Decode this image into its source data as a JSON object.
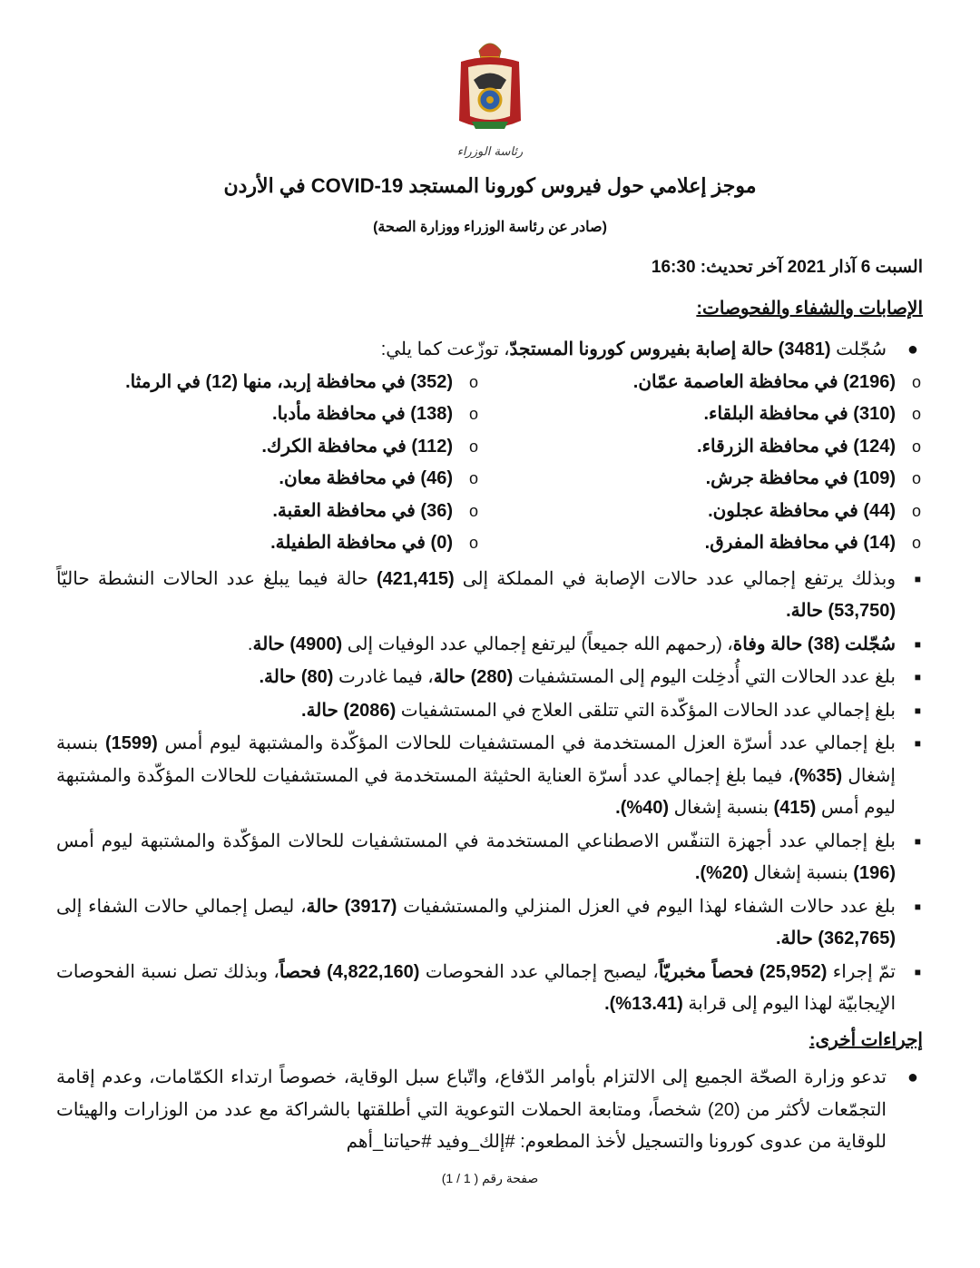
{
  "emblem_text": "رئاسة الوزراء",
  "title": "موجز إعلامي حول فيروس كورونا المستجد COVID-19 في الأردن",
  "subtitle": "(صادر عن رئاسة الوزراء ووزارة الصحة)",
  "date_line": "السبت 6 آذار 2021 آخر تحديث: 16:30",
  "section1_heading": "الإصابات والشفاء والفحوصات:",
  "intro": [
    {
      "t": "سُجّلت "
    },
    {
      "t": "(3481) حالة إصابة بفيروس كورونا المستجدّ",
      "b": true
    },
    {
      "t": "، توزّعت كما يلي:"
    }
  ],
  "provinces": [
    "(2196) في محافظة العاصمة عمّان.",
    "(352) في محافظة إربد، منها (12) في الرمثا.",
    "(310) في محافظة البلقاء.",
    "(138) في محافظة مأدبا.",
    "(124) في محافظة الزرقاء.",
    "(112) في محافظة الكرك.",
    "(109) في محافظة جرش.",
    "(46) في محافظة معان.",
    "(44) في محافظة عجلون.",
    "(36) في محافظة العقبة.",
    "(14) في محافظة المفرق.",
    "(0) في محافظة الطفيلة."
  ],
  "items": [
    [
      {
        "t": "وبذلك يرتفع إجمالي عدد حالات الإصابة في المملكة إلى "
      },
      {
        "t": "(421,415)",
        "b": true
      },
      {
        "t": " حالة فيما يبلغ عدد الحالات النشطة حاليّاً "
      },
      {
        "t": "(53,750) حالة.",
        "b": true
      }
    ],
    [
      {
        "t": "سُجّلت (38) حالة وفاة",
        "b": true
      },
      {
        "t": "، (رحمهم الله جميعاً) ليرتفع إجمالي عدد الوفيات إلى "
      },
      {
        "t": "(4900) حالة",
        "b": true
      },
      {
        "t": "."
      }
    ],
    [
      {
        "t": "بلغ عدد الحالات التي أُدخِلت اليوم إلى المستشفيات "
      },
      {
        "t": "(280) حالة",
        "b": true
      },
      {
        "t": "، فيما غادرت "
      },
      {
        "t": "(80) حالة.",
        "b": true
      }
    ],
    [
      {
        "t": "بلغ إجمالي عدد الحالات المؤكّدة التي تتلقى العلاج في المستشفيات "
      },
      {
        "t": "(2086) حالة.",
        "b": true
      }
    ],
    [
      {
        "t": "بلغ إجمالي عدد أسرّة العزل المستخدمة في المستشفيات للحالات المؤكّدة والمشتبهة ليوم أمس "
      },
      {
        "t": "(1599)",
        "b": true
      },
      {
        "t": " بنسبة إشغال "
      },
      {
        "t": "(35%)",
        "b": true
      },
      {
        "t": "، فيما بلغ إجمالي عدد أسرّة العناية الحثيثة المستخدمة في المستشفيات للحالات المؤكّدة والمشتبهة ليوم أمس "
      },
      {
        "t": "(415)",
        "b": true
      },
      {
        "t": " بنسبة إشغال "
      },
      {
        "t": "(40%).",
        "b": true
      }
    ],
    [
      {
        "t": "بلغ إجمالي عدد أجهزة التنفّس الاصطناعي المستخدمة في المستشفيات للحالات المؤكّدة والمشتبهة ليوم أمس "
      },
      {
        "t": "(196)",
        "b": true
      },
      {
        "t": " بنسبة إشغال "
      },
      {
        "t": "(20%).",
        "b": true
      }
    ],
    [
      {
        "t": "بلغ عدد حالات الشفاء لهذا اليوم في العزل المنزلي والمستشفيات "
      },
      {
        "t": "(3917) حالة",
        "b": true
      },
      {
        "t": "، ليصل إجمالي حالات الشفاء إلى "
      },
      {
        "t": "(362,765) حالة.",
        "b": true
      }
    ],
    [
      {
        "t": "تمّ إجراء "
      },
      {
        "t": "(25,952) فحصاً مخبريّاً",
        "b": true
      },
      {
        "t": "، ليصبح إجمالي عدد الفحوصات "
      },
      {
        "t": "(4,822,160) فحصاً",
        "b": true
      },
      {
        "t": "، وبذلك تصل نسبة الفحوصات الإيجابيّة لهذا اليوم إلى قرابة "
      },
      {
        "t": "(13.41%).",
        "b": true
      }
    ]
  ],
  "section2_heading": "إجراءات أخرى:",
  "other": "تدعو وزارة الصحّة الجميع إلى الالتزام بأوامر الدّفاع، واتّباع سبل الوقاية، خصوصاً ارتداء الكمّامات، وعدم إقامة التجمّعات لأكثر من (20) شخصاً، ومتابعة الحملات التوعوية التي أطلقتها بالشراكة مع عدد من الوزارات والهيئات للوقاية من عدوى كورونا والتسجيل لأخذ المطعوم: #إلك_وفيد #حياتنا_أهم",
  "footer": "صفحة رقم ( 1 / 1)"
}
